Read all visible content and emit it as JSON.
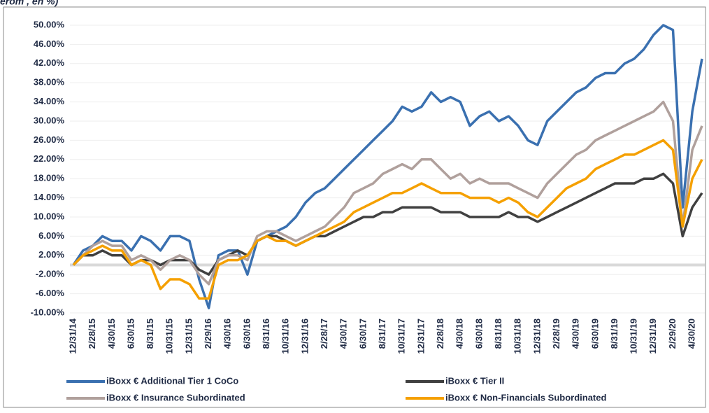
{
  "chart_data": {
    "type": "line",
    "title": "erom , en %)",
    "categories": [
      "12/31/14",
      null,
      "2/28/15",
      null,
      "4/30/15",
      null,
      "6/30/15",
      null,
      "8/31/15",
      null,
      "10/31/15",
      null,
      "12/31/15",
      null,
      "2/29/16",
      null,
      "4/30/16",
      null,
      "6/30/16",
      null,
      "8/31/16",
      null,
      "10/31/16",
      null,
      "12/31/16",
      null,
      "2/28/17",
      null,
      "4/30/17",
      null,
      "6/30/17",
      null,
      "8/31/17",
      null,
      "10/31/17",
      null,
      "12/31/17",
      null,
      "2/28/18",
      null,
      "4/30/18",
      null,
      "6/30/18",
      null,
      "8/31/18",
      null,
      "10/31/18",
      null,
      "12/31/18",
      null,
      "2/28/19",
      null,
      "4/30/19",
      null,
      "6/30/19",
      null,
      "8/31/19",
      null,
      "10/31/19",
      null,
      "12/31/19",
      null,
      "2/29/20",
      null,
      "4/30/20",
      null
    ],
    "series": [
      {
        "name": "iBoxx € Additional Tier 1 CoCo",
        "color": "#3a70b0",
        "values": [
          0,
          3,
          4,
          6,
          5,
          5,
          3,
          6,
          5,
          3,
          6,
          6,
          5,
          -3,
          -9,
          2,
          3,
          3,
          -2,
          5,
          6,
          7,
          8,
          10,
          13,
          15,
          16,
          18,
          20,
          22,
          24,
          26,
          28,
          30,
          33,
          32,
          33,
          36,
          34,
          35,
          34,
          29,
          31,
          32,
          30,
          31,
          29,
          26,
          25,
          30,
          32,
          34,
          36,
          37,
          39,
          40,
          40,
          42,
          43,
          45,
          48,
          50,
          49,
          12,
          32,
          43
        ]
      },
      {
        "name": "iBoxx € Tier II",
        "color": "#404040",
        "values": [
          0,
          2,
          2,
          3,
          2,
          2,
          0,
          1,
          1,
          0,
          1,
          1,
          1,
          -1,
          -2,
          1,
          2,
          3,
          2,
          5,
          6,
          6,
          5,
          4,
          5,
          6,
          6,
          7,
          8,
          9,
          10,
          10,
          11,
          11,
          12,
          12,
          12,
          12,
          11,
          11,
          11,
          10,
          10,
          10,
          10,
          11,
          10,
          10,
          9,
          10,
          11,
          12,
          13,
          14,
          15,
          16,
          17,
          17,
          17,
          18,
          18,
          19,
          17,
          6,
          12,
          15
        ]
      },
      {
        "name": "iBoxx € Insurance Subordinated",
        "color": "#b0a09c",
        "values": [
          0,
          2,
          4,
          5,
          4,
          4,
          1,
          2,
          1,
          -1,
          1,
          2,
          1,
          -2,
          -4,
          1,
          2,
          2,
          1,
          6,
          7,
          7,
          6,
          5,
          6,
          7,
          8,
          10,
          12,
          15,
          16,
          17,
          19,
          20,
          21,
          20,
          22,
          22,
          20,
          18,
          19,
          17,
          18,
          17,
          17,
          17,
          16,
          15,
          14,
          17,
          19,
          21,
          23,
          24,
          26,
          27,
          28,
          29,
          30,
          31,
          32,
          34,
          30,
          8,
          24,
          29
        ]
      },
      {
        "name": "iBoxx € Non-Financials Subordinated",
        "color": "#f5a000",
        "values": [
          0,
          2,
          3,
          4,
          3,
          3,
          0,
          1,
          0,
          -5,
          -3,
          -3,
          -4,
          -7,
          -7,
          0,
          1,
          1,
          2,
          5,
          6,
          5,
          5,
          4,
          5,
          6,
          7,
          8,
          9,
          11,
          12,
          13,
          14,
          15,
          15,
          16,
          17,
          16,
          15,
          15,
          15,
          14,
          14,
          14,
          13,
          14,
          13,
          11,
          10,
          12,
          14,
          16,
          17,
          18,
          20,
          21,
          22,
          23,
          23,
          24,
          25,
          26,
          24,
          8,
          18,
          22
        ]
      }
    ],
    "ylim": [
      -10,
      53.5
    ],
    "yticks": [
      {
        "value": -10,
        "label": "-10.00%"
      },
      {
        "value": -6,
        "label": "-6.00%"
      },
      {
        "value": -2,
        "label": "-2.00%"
      },
      {
        "value": 2,
        "label": "2.00%"
      },
      {
        "value": 6,
        "label": "6.00%"
      },
      {
        "value": 10,
        "label": "10.00%"
      },
      {
        "value": 14,
        "label": "14.00%"
      },
      {
        "value": 18,
        "label": "18.00%"
      },
      {
        "value": 22,
        "label": "22.00%"
      },
      {
        "value": 26,
        "label": "26.00%"
      },
      {
        "value": 30,
        "label": "30.00%"
      },
      {
        "value": 34,
        "label": "34.00%"
      },
      {
        "value": 38,
        "label": "38.00%"
      },
      {
        "value": 42,
        "label": "42.00%"
      },
      {
        "value": 46,
        "label": "46.00%"
      },
      {
        "value": 50,
        "label": "50.00%"
      }
    ],
    "grid": true
  }
}
